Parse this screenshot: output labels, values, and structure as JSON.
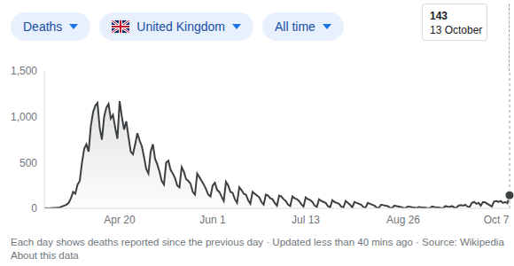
{
  "controls": [
    "Deaths",
    "United Kingdom",
    "All time"
  ],
  "chart_data": {
    "type": "area",
    "color": "#3c4043",
    "grid": false,
    "categories": [
      null,
      null,
      null,
      null,
      null,
      null,
      null,
      null,
      null,
      null,
      null,
      null,
      null,
      null,
      null,
      null,
      null,
      null,
      null,
      null,
      null,
      null,
      null,
      null,
      null,
      null,
      null,
      null,
      null,
      null,
      null,
      null,
      null,
      null,
      "Apr 20",
      null,
      null,
      null,
      null,
      null,
      null,
      null,
      null,
      null,
      null,
      null,
      null,
      null,
      null,
      null,
      null,
      null,
      null,
      null,
      null,
      null,
      null,
      null,
      null,
      null,
      null,
      null,
      null,
      null,
      null,
      null,
      null,
      null,
      null,
      null,
      null,
      null,
      null,
      null,
      null,
      null,
      "Jun 1",
      null,
      null,
      null,
      null,
      null,
      null,
      null,
      null,
      null,
      null,
      null,
      null,
      null,
      null,
      null,
      null,
      null,
      null,
      null,
      null,
      null,
      null,
      null,
      null,
      null,
      null,
      null,
      null,
      null,
      null,
      null,
      null,
      null,
      null,
      null,
      null,
      null,
      null,
      null,
      null,
      null,
      "Jul 13",
      null,
      null,
      null,
      null,
      null,
      null,
      null,
      null,
      null,
      null,
      null,
      null,
      null,
      null,
      null,
      null,
      null,
      null,
      null,
      null,
      null,
      null,
      null,
      null,
      null,
      null,
      null,
      null,
      null,
      null,
      null,
      null,
      null,
      null,
      null,
      null,
      null,
      null,
      null,
      null,
      null,
      null,
      null,
      "Aug 26",
      null,
      null,
      null,
      null,
      null,
      null,
      null,
      null,
      null,
      null,
      null,
      null,
      null,
      null,
      null,
      null,
      null,
      null,
      null,
      null,
      null,
      null,
      null,
      null,
      null,
      null,
      null,
      null,
      null,
      null,
      null,
      null,
      null,
      null,
      null,
      null,
      null,
      null,
      null,
      null,
      null,
      "Oct 7",
      null,
      null,
      null,
      null,
      null,
      null
    ],
    "values": [
      0,
      2,
      1,
      3,
      5,
      4,
      8,
      10,
      20,
      30,
      40,
      60,
      110,
      180,
      160,
      260,
      300,
      500,
      650,
      700,
      620,
      900,
      1050,
      1120,
      1150,
      880,
      750,
      1000,
      1100,
      1140,
      980,
      1020,
      880,
      760,
      1170,
      1000,
      860,
      950,
      780,
      620,
      590,
      700,
      820,
      740,
      680,
      560,
      430,
      380,
      620,
      700,
      540,
      480,
      400,
      300,
      260,
      500,
      520,
      420,
      380,
      330,
      250,
      230,
      450,
      400,
      320,
      300,
      270,
      180,
      150,
      380,
      340,
      300,
      260,
      210,
      150,
      130,
      250,
      280,
      200,
      180,
      130,
      80,
      290,
      250,
      180,
      170,
      100,
      60,
      230,
      200,
      160,
      150,
      90,
      50,
      180,
      160,
      140,
      120,
      70,
      40,
      150,
      140,
      110,
      100,
      60,
      30,
      140,
      130,
      100,
      80,
      40,
      25,
      130,
      110,
      100,
      80,
      45,
      20,
      120,
      100,
      90,
      70,
      30,
      15,
      100,
      80,
      70,
      60,
      25,
      10,
      90,
      70,
      60,
      50,
      20,
      10,
      80,
      60,
      40,
      10,
      70,
      60,
      50,
      40,
      15,
      8,
      60,
      50,
      40,
      30,
      10,
      5,
      40,
      35,
      30,
      25,
      8,
      5,
      30,
      25,
      20,
      15,
      5,
      3,
      20,
      18,
      12,
      10,
      3,
      15,
      12,
      10,
      8,
      2,
      2,
      20,
      15,
      12,
      10,
      5,
      3,
      25,
      20,
      18,
      25,
      10,
      8,
      30,
      35,
      30,
      40,
      20,
      15,
      60,
      70,
      50,
      60,
      30,
      70,
      65,
      50,
      35,
      20,
      75,
      80,
      70,
      80,
      60,
      70,
      55,
      143
    ],
    "ylim": [
      0,
      1500
    ],
    "yticks": [
      0,
      500,
      {
        "value": 1000,
        "label": "1,000"
      },
      {
        "value": 1500,
        "label": "1,500"
      }
    ],
    "tooltip": {
      "value": 143,
      "label": "13 October"
    }
  },
  "footer": {
    "note": "Each day shows deaths reported since the previous day · Updated less than 40 mins ago · Source: Wikipedia",
    "link": "About this data"
  }
}
